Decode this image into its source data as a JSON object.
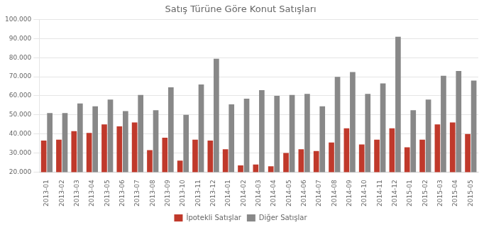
{
  "chart_data": {
    "type": "bar",
    "title": "Satış Türüne Göre Konut Satışları",
    "categories": [
      "2013-01",
      "2013-02",
      "2013-03",
      "2013-04",
      "2013-05",
      "2013-06",
      "2013-07",
      "2013-08",
      "2013-09",
      "2013-10",
      "2013-11",
      "2013-12",
      "2014-01",
      "2014-02",
      "2014-03",
      "2014-04",
      "2014-05",
      "2014-06",
      "2014-07",
      "2014-08",
      "2014-09",
      "2014-10",
      "2014-11",
      "2014-12",
      "2015-01",
      "2015-02",
      "2015-03",
      "2015-04",
      "2015-05"
    ],
    "series": [
      {
        "name": "İpotekli Satışlar",
        "color": "#c0392b",
        "values": [
          36500,
          37000,
          41500,
          40500,
          45000,
          44000,
          46000,
          31500,
          38000,
          26000,
          37000,
          36500,
          32000,
          23500,
          24000,
          23000,
          30000,
          32000,
          31000,
          35500,
          43000,
          34500,
          37000,
          43000,
          33000,
          37000,
          45000,
          46000,
          40000
        ]
      },
      {
        "name": "Diğer Satışlar",
        "color": "#888888",
        "values": [
          51000,
          51000,
          56000,
          54500,
          58000,
          52000,
          60500,
          52500,
          64500,
          50000,
          66000,
          79500,
          55500,
          58500,
          63000,
          60000,
          60500,
          61000,
          54500,
          70000,
          72500,
          61000,
          66500,
          91000,
          52500,
          58000,
          70500,
          73000,
          68000
        ]
      }
    ],
    "ylim": [
      20000,
      100000
    ],
    "yticks": [
      {
        "value": 20000,
        "label": "20.000"
      },
      {
        "value": 30000,
        "label": "30.000"
      },
      {
        "value": 40000,
        "label": "40.000"
      },
      {
        "value": 50000,
        "label": "50.000"
      },
      {
        "value": 60000,
        "label": "60.000"
      },
      {
        "value": 70000,
        "label": "70.000"
      },
      {
        "value": 80000,
        "label": "80.000"
      },
      {
        "value": 90000,
        "label": "90.000"
      },
      {
        "value": 100000,
        "label": "100.000"
      }
    ],
    "grid": true,
    "legend": "bottom"
  }
}
